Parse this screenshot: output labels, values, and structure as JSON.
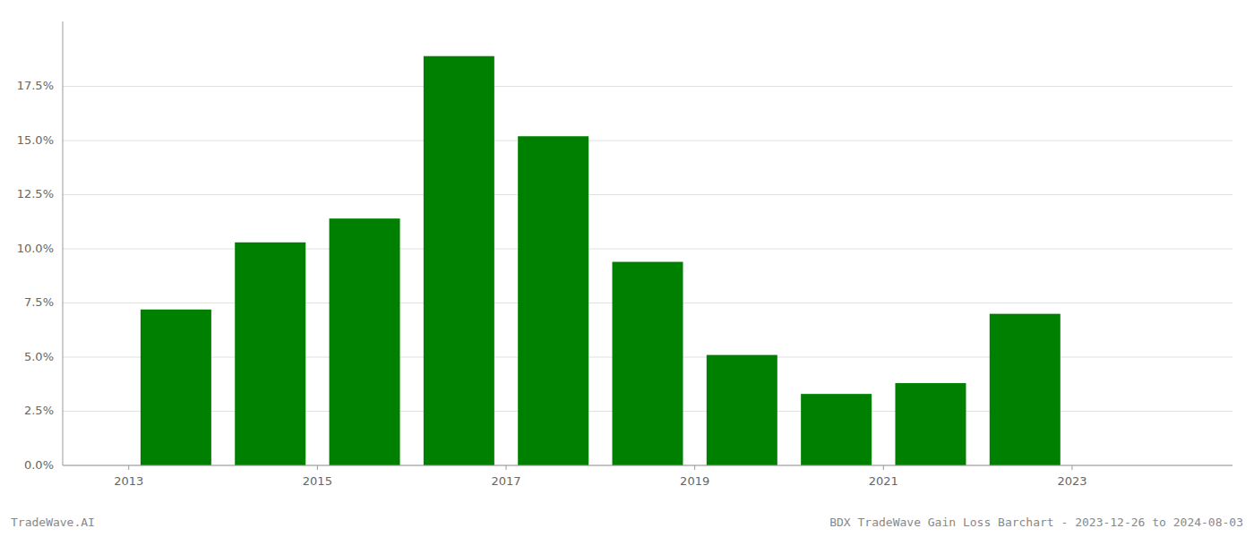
{
  "chart_data": {
    "type": "bar",
    "x": [
      2013,
      2014,
      2015,
      2016,
      2017,
      2018,
      2019,
      2020,
      2021,
      2022,
      2023
    ],
    "values": [
      0.072,
      0.103,
      0.114,
      0.189,
      0.152,
      0.094,
      0.051,
      0.033,
      0.038,
      0.07,
      0.0
    ],
    "color": "#008000",
    "xlim": [
      2011.8,
      2024.2
    ],
    "xticks": [
      {
        "value": 2012.5,
        "label": "2013"
      },
      {
        "value": 2014.5,
        "label": "2015"
      },
      {
        "value": 2016.5,
        "label": "2017"
      },
      {
        "value": 2018.5,
        "label": "2019"
      },
      {
        "value": 2020.5,
        "label": "2021"
      },
      {
        "value": 2022.5,
        "label": "2023"
      }
    ],
    "ylim": [
      0,
      0.205
    ],
    "yticks": [
      {
        "value": 0.0,
        "label": "0.0%"
      },
      {
        "value": 0.025,
        "label": "2.5%"
      },
      {
        "value": 0.05,
        "label": "5.0%"
      },
      {
        "value": 0.075,
        "label": "7.5%"
      },
      {
        "value": 0.1,
        "label": "10.0%"
      },
      {
        "value": 0.125,
        "label": "12.5%"
      },
      {
        "value": 0.15,
        "label": "15.0%"
      },
      {
        "value": 0.175,
        "label": "17.5%"
      }
    ],
    "grid": true,
    "annotations": [
      "TradeWave.AI",
      "BDX TradeWave Gain Loss Barchart - 2023-12-26 to 2024-08-03"
    ]
  }
}
